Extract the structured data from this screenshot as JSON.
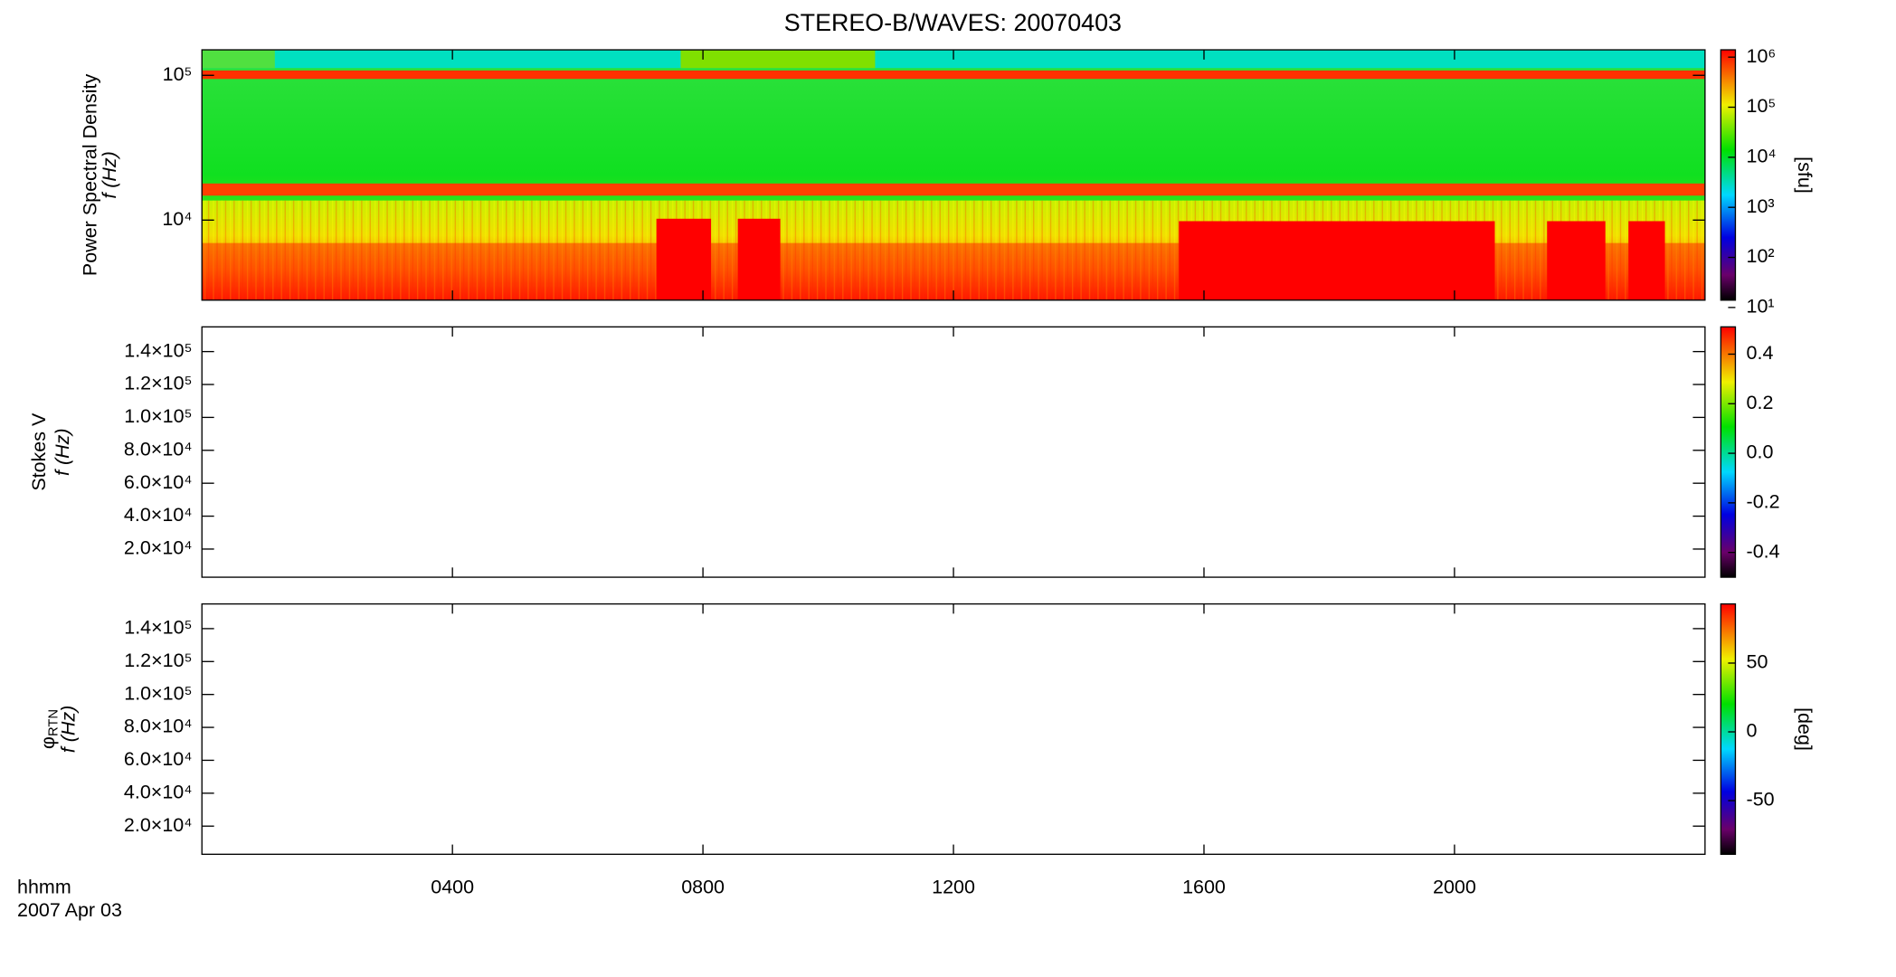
{
  "chart_data": [
    {
      "type": "heatmap",
      "title": "STEREO-B/WAVES: 20070403",
      "y_label": "Power Spectral Density",
      "y_label_unit": "f (Hz)",
      "y_log": true,
      "ylim": [
        2800,
        150000
      ],
      "yticks": [
        {
          "value": 10000,
          "label": "10⁴"
        },
        {
          "value": 100000,
          "label": "10⁵"
        }
      ],
      "colorbar_label": "[sfu]",
      "colorbar_log": true,
      "clim": [
        14,
        1400000
      ],
      "colorbar_ticks": [
        {
          "value": 10,
          "label": "10¹"
        },
        {
          "value": 100,
          "label": "10²"
        },
        {
          "value": 1000,
          "label": "10³"
        },
        {
          "value": 10000,
          "label": "10⁴"
        },
        {
          "value": 100000,
          "label": "10⁵"
        },
        {
          "value": 1000000,
          "label": "10⁶"
        }
      ]
    },
    {
      "type": "heatmap",
      "y_label": "Stokes V",
      "y_label_unit": "f (Hz)",
      "y_log": false,
      "ylim": [
        2900,
        155000
      ],
      "yticks": [
        {
          "value": 20000,
          "label": "2.0×10⁴"
        },
        {
          "value": 40000,
          "label": "4.0×10⁴"
        },
        {
          "value": 60000,
          "label": "6.0×10⁴"
        },
        {
          "value": 80000,
          "label": "8.0×10⁴"
        },
        {
          "value": 100000,
          "label": "1.0×10⁵"
        },
        {
          "value": 120000,
          "label": "1.2×10⁵"
        },
        {
          "value": 140000,
          "label": "1.4×10⁵"
        }
      ],
      "colorbar_log": false,
      "clim": [
        -0.5,
        0.51
      ],
      "colorbar_ticks": [
        -0.4,
        -0.2,
        {
          "value": 0,
          "label": "0.0"
        },
        0.2,
        0.4
      ]
    },
    {
      "type": "heatmap",
      "y_label": "φ",
      "y_label_subscript": "RTN",
      "y_label_unit": "f (Hz)",
      "y_log": false,
      "ylim": [
        2900,
        155000
      ],
      "yticks": [
        {
          "value": 20000,
          "label": "2.0×10⁴"
        },
        {
          "value": 40000,
          "label": "4.0×10⁴"
        },
        {
          "value": 60000,
          "label": "6.0×10⁴"
        },
        {
          "value": 80000,
          "label": "8.0×10⁴"
        },
        {
          "value": 100000,
          "label": "1.0×10⁵"
        },
        {
          "value": 120000,
          "label": "1.2×10⁵"
        },
        {
          "value": 140000,
          "label": "1.4×10⁵"
        }
      ],
      "colorbar_label": "[deg]",
      "colorbar_log": false,
      "clim": [
        -89,
        93
      ],
      "colorbar_ticks": [
        -50,
        0,
        50
      ],
      "x_label": "hhmm",
      "x_date": "2007 Apr 03",
      "xlim": [
        0,
        24
      ],
      "xticks": [
        {
          "value": 4,
          "label": "0400"
        },
        {
          "value": 8,
          "label": "0800"
        },
        {
          "value": 12,
          "label": "1200"
        },
        {
          "value": 16,
          "label": "1600"
        },
        {
          "value": 20,
          "label": "2000"
        }
      ]
    }
  ]
}
